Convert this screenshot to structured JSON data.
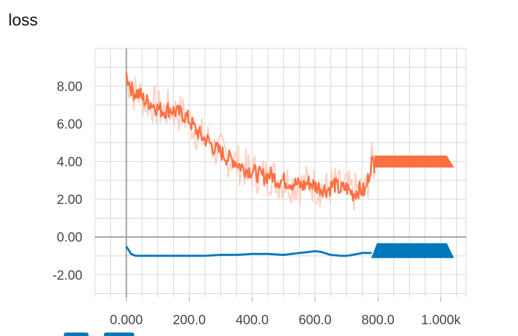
{
  "title": "loss",
  "colors": {
    "orange": "#ff7043",
    "orange_raw": "#ffccbc",
    "blue": "#0077bb",
    "grid": "#d6d6d6",
    "zero_axis": "#9e9e9e"
  },
  "legend_swatches": [
    "#0077bb",
    "#0077bb"
  ],
  "chart_data": {
    "type": "line",
    "title": "loss",
    "xlim": [
      -100,
      1080
    ],
    "ylim": [
      -3.2,
      10.0
    ],
    "x_ticks": [
      0,
      200,
      400,
      600,
      800,
      1000
    ],
    "x_tick_labels": [
      "0.000",
      "200.0",
      "400.0",
      "600.0",
      "800.0",
      "1.000k"
    ],
    "y_ticks": [
      8,
      6,
      4,
      2,
      0,
      -2
    ],
    "y_tick_labels": [
      "8.00",
      "6.00",
      "4.00",
      "2.00",
      "0.00",
      "-2.00"
    ],
    "grid": true,
    "series": [
      {
        "color": "#ff7043",
        "raw_color": "#ffccbc",
        "x": [
          0,
          20,
          40,
          60,
          80,
          100,
          120,
          140,
          160,
          180,
          200,
          220,
          240,
          260,
          280,
          300,
          320,
          340,
          360,
          380,
          400,
          420,
          440,
          460,
          480,
          500,
          520,
          540,
          560,
          580,
          600,
          620,
          640,
          660,
          680,
          700,
          720,
          740,
          760,
          780,
          790
        ],
        "values": [
          8.6,
          7.7,
          7.6,
          7.2,
          7.1,
          6.8,
          6.7,
          6.8,
          6.6,
          6.5,
          6.2,
          5.7,
          5.3,
          5.1,
          4.7,
          4.5,
          4.2,
          4.1,
          3.8,
          3.6,
          3.5,
          3.3,
          3.2,
          3.3,
          3.0,
          3.0,
          2.9,
          2.8,
          2.7,
          2.9,
          2.7,
          2.6,
          2.5,
          2.8,
          2.5,
          2.6,
          2.3,
          2.5,
          2.4,
          4.0,
          3.8
        ],
        "flat_band": {
          "x_start": 790,
          "x_end": 1040,
          "y_low": 3.7,
          "y_high": 4.3
        }
      },
      {
        "color": "#0077bb",
        "x": [
          0,
          15,
          30,
          60,
          100,
          150,
          200,
          250,
          300,
          350,
          400,
          450,
          500,
          550,
          580,
          600,
          620,
          650,
          680,
          700,
          720,
          750,
          780
        ],
        "values": [
          -0.5,
          -0.9,
          -1.0,
          -1.0,
          -1.0,
          -1.0,
          -1.0,
          -1.0,
          -0.95,
          -0.95,
          -0.9,
          -0.9,
          -0.95,
          -0.85,
          -0.8,
          -0.75,
          -0.8,
          -0.95,
          -1.0,
          -1.0,
          -0.95,
          -0.85,
          -0.85
        ],
        "flat_band": {
          "x_start": 780,
          "x_end": 1040,
          "y_low": -1.1,
          "y_high": -0.35
        }
      }
    ]
  }
}
